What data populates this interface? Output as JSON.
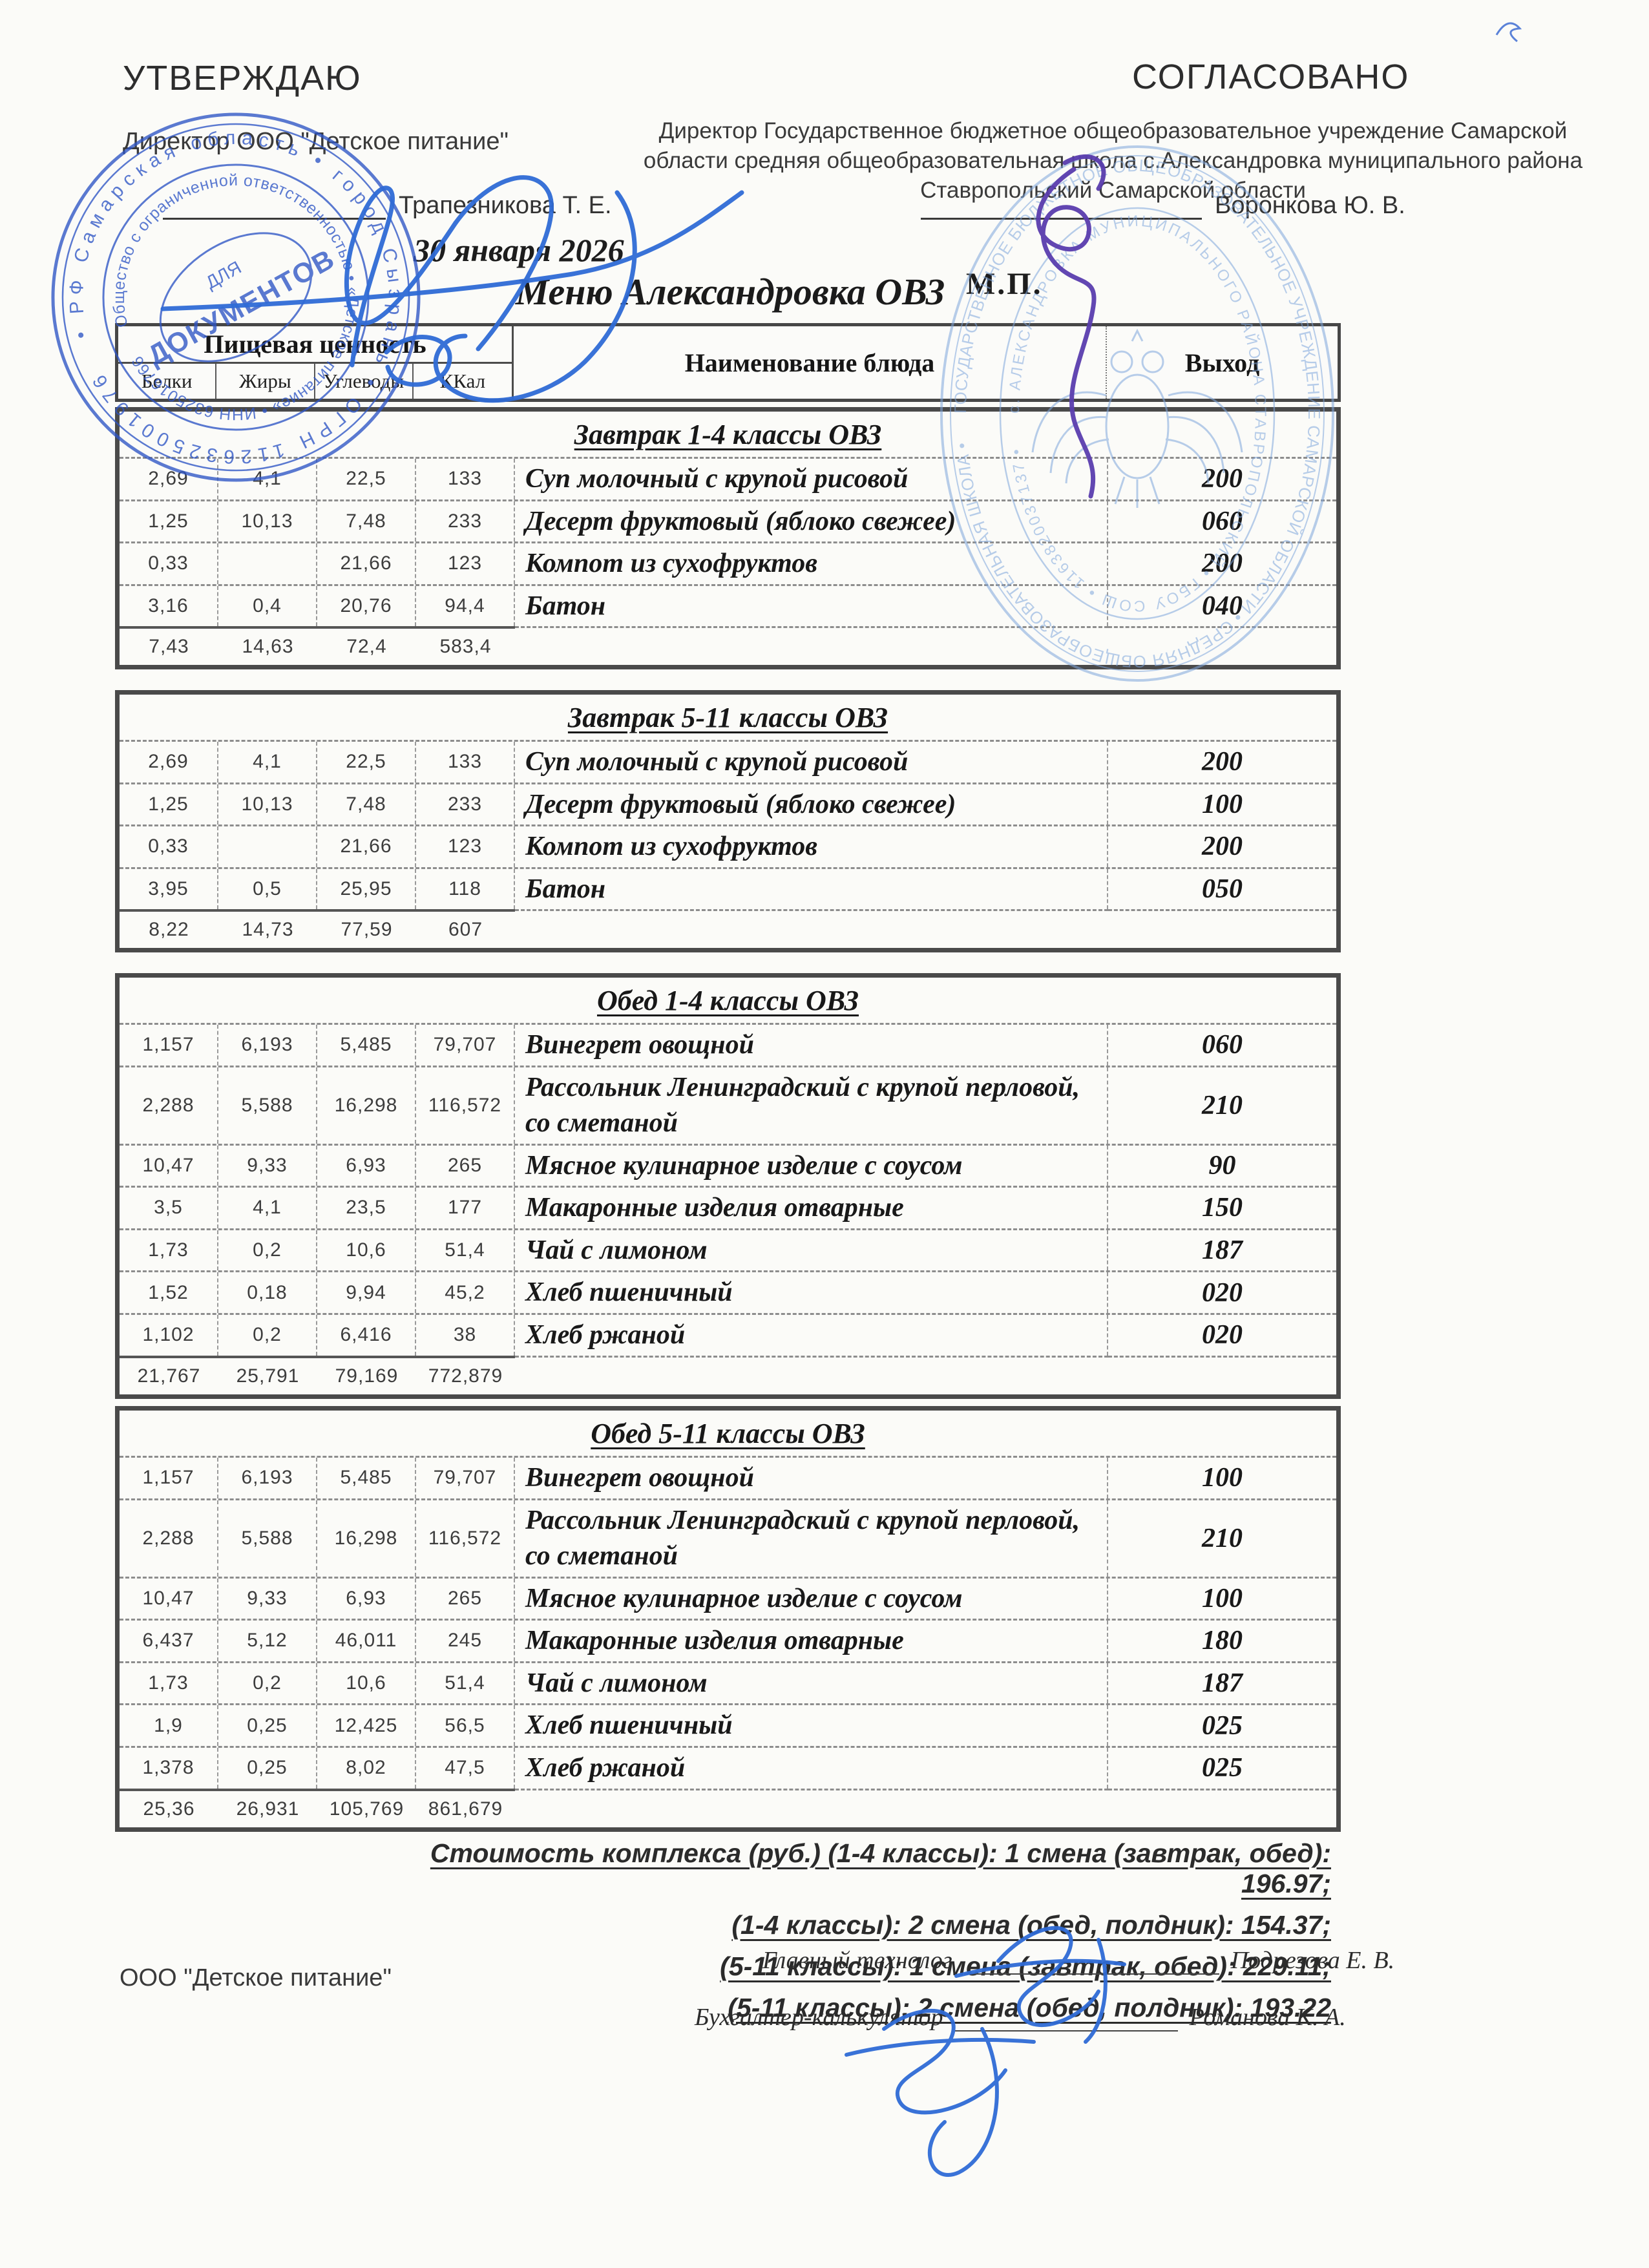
{
  "page_title": "Меню Александровка ОВЗ",
  "approve_block": {
    "heading": "УТВЕРЖДАЮ",
    "role": "Директор ООО \"Детское питание\"",
    "signer": "Трапезникова Т. Е.",
    "date": "30 января 2026"
  },
  "agree_block": {
    "heading": "СОГЛАСОВАНО",
    "role": "Директор Государственное бюджетное общеобразовательное учреждение Самарской\nобласти средняя общеобразовательная школа с.Александровка муниципального района\nСтавропольский Самарской области",
    "signer": "Воронкова Ю. В.",
    "seal_mark": "М.П."
  },
  "columns": {
    "nutrition_group": "Пищевая ценность",
    "nutrition": [
      "Белки",
      "Жиры",
      "Углеводы",
      "ККал"
    ],
    "dish": "Наименование блюда",
    "output": "Выход"
  },
  "sections": [
    {
      "title": "Завтрак 1-4 классы ОВЗ",
      "rows": [
        {
          "values": [
            "2,69",
            "4,1",
            "22,5",
            "133"
          ],
          "dish": "Суп молочный с крупой рисовой",
          "output": "200"
        },
        {
          "values": [
            "1,25",
            "10,13",
            "7,48",
            "233"
          ],
          "dish": "Десерт фруктовый (яблоко свежее)",
          "output": "060"
        },
        {
          "values": [
            "0,33",
            "",
            "21,66",
            "123"
          ],
          "dish": "Компот из сухофруктов",
          "output": "200"
        },
        {
          "values": [
            "3,16",
            "0,4",
            "20,76",
            "94,4"
          ],
          "dish": "Батон",
          "output": "040"
        }
      ],
      "totals": [
        "7,43",
        "14,63",
        "72,4",
        "583,4"
      ]
    },
    {
      "title": "Завтрак 5-11 классы ОВЗ",
      "rows": [
        {
          "values": [
            "2,69",
            "4,1",
            "22,5",
            "133"
          ],
          "dish": "Суп молочный с крупой рисовой",
          "output": "200"
        },
        {
          "values": [
            "1,25",
            "10,13",
            "7,48",
            "233"
          ],
          "dish": "Десерт фруктовый (яблоко свежее)",
          "output": "100"
        },
        {
          "values": [
            "0,33",
            "",
            "21,66",
            "123"
          ],
          "dish": "Компот из сухофруктов",
          "output": "200"
        },
        {
          "values": [
            "3,95",
            "0,5",
            "25,95",
            "118"
          ],
          "dish": "Батон",
          "output": "050"
        }
      ],
      "totals": [
        "8,22",
        "14,73",
        "77,59",
        "607"
      ]
    },
    {
      "title": "Обед 1-4 классы ОВЗ",
      "rows": [
        {
          "values": [
            "1,157",
            "6,193",
            "5,485",
            "79,707"
          ],
          "dish": "Винегрет овощной",
          "output": "060"
        },
        {
          "values": [
            "2,288",
            "5,588",
            "16,298",
            "116,572"
          ],
          "dish": "Рассольник Ленинградский с крупой перловой, со сметаной",
          "output": "210"
        },
        {
          "values": [
            "10,47",
            "9,33",
            "6,93",
            "265"
          ],
          "dish": "Мясное кулинарное изделие с соусом",
          "output": "90"
        },
        {
          "values": [
            "3,5",
            "4,1",
            "23,5",
            "177"
          ],
          "dish": "Макаронные изделия отварные",
          "output": "150"
        },
        {
          "values": [
            "1,73",
            "0,2",
            "10,6",
            "51,4"
          ],
          "dish": "Чай с лимоном",
          "output": "187"
        },
        {
          "values": [
            "1,52",
            "0,18",
            "9,94",
            "45,2"
          ],
          "dish": "Хлеб пшеничный",
          "output": "020"
        },
        {
          "values": [
            "1,102",
            "0,2",
            "6,416",
            "38"
          ],
          "dish": "Хлеб ржаной",
          "output": "020"
        }
      ],
      "totals": [
        "21,767",
        "25,791",
        "79,169",
        "772,879"
      ]
    },
    {
      "title": "Обед 5-11 классы ОВЗ",
      "rows": [
        {
          "values": [
            "1,157",
            "6,193",
            "5,485",
            "79,707"
          ],
          "dish": "Винегрет овощной",
          "output": "100"
        },
        {
          "values": [
            "2,288",
            "5,588",
            "16,298",
            "116,572"
          ],
          "dish": "Рассольник Ленинградский с крупой перловой, со сметаной",
          "output": "210"
        },
        {
          "values": [
            "10,47",
            "9,33",
            "6,93",
            "265"
          ],
          "dish": "Мясное кулинарное изделие с соусом",
          "output": "100"
        },
        {
          "values": [
            "6,437",
            "5,12",
            "46,011",
            "245"
          ],
          "dish": "Макаронные изделия отварные",
          "output": "180"
        },
        {
          "values": [
            "1,73",
            "0,2",
            "10,6",
            "51,4"
          ],
          "dish": "Чай с лимоном",
          "output": "187"
        },
        {
          "values": [
            "1,9",
            "0,25",
            "12,425",
            "56,5"
          ],
          "dish": "Хлеб пшеничный",
          "output": "025"
        },
        {
          "values": [
            "1,378",
            "0,25",
            "8,02",
            "47,5"
          ],
          "dish": "Хлеб ржаной",
          "output": "025"
        }
      ],
      "totals": [
        "25,36",
        "26,931",
        "105,769",
        "861,679"
      ]
    }
  ],
  "cost_summary": [
    "Стоимость комплекса (руб.) (1-4 классы): 1 смена (завтрак, обед): 196.97;",
    "(1-4 классы): 2 смена (обед, полдник): 154.37;",
    "(5-11 классы): 1 смена (завтрак, обед): 229.11;",
    "(5-11 классы): 2 смена (обед, полдник): 193.22"
  ],
  "footer": {
    "company": "ООО \"Детское питание\"",
    "roles": [
      {
        "label": "Главный технолог",
        "name": "Подрезова Е. В."
      },
      {
        "label": "Бухгалтер-калькулятор",
        "name": "Романова К. А."
      }
    ]
  },
  "stamps": {
    "left": {
      "ring1": "• РФ Самарская область • город Сызрань • ОГРН 1126325001976",
      "ring2": "Общество с ограниченной ответственностью • «Детское питание» • ИНН 6325016766",
      "center_small": "ДЛЯ",
      "center_big": "ДОКУМЕНТОВ"
    },
    "right": {
      "ring1": "ГОСУДАРСТВЕННОЕ БЮДЖЕТНОЕ ОБЩЕОБРАЗОВАТЕЛЬНОЕ УЧРЕЖДЕНИЕ САМАРСКОЙ ОБЛАСТИ • СРЕДНЯЯ ОБЩЕОБРАЗОВАТЕЛЬНАЯ ШКОЛА •",
      "ring2": "с. АЛЕКСАНДРОВКА МУНИЦИПАЛЬНОГО РАЙОНА СТАВРОПОЛЬСКИЙ • ГБОУ СОШ • 1163820037137 •"
    }
  },
  "colors": {
    "stamp_blue": "#2e55c5",
    "stamp_light_blue": "#7fa6dc",
    "signature_purple": "#5a3dae",
    "signature_blue": "#2f6bd6",
    "ink": "#222222"
  }
}
